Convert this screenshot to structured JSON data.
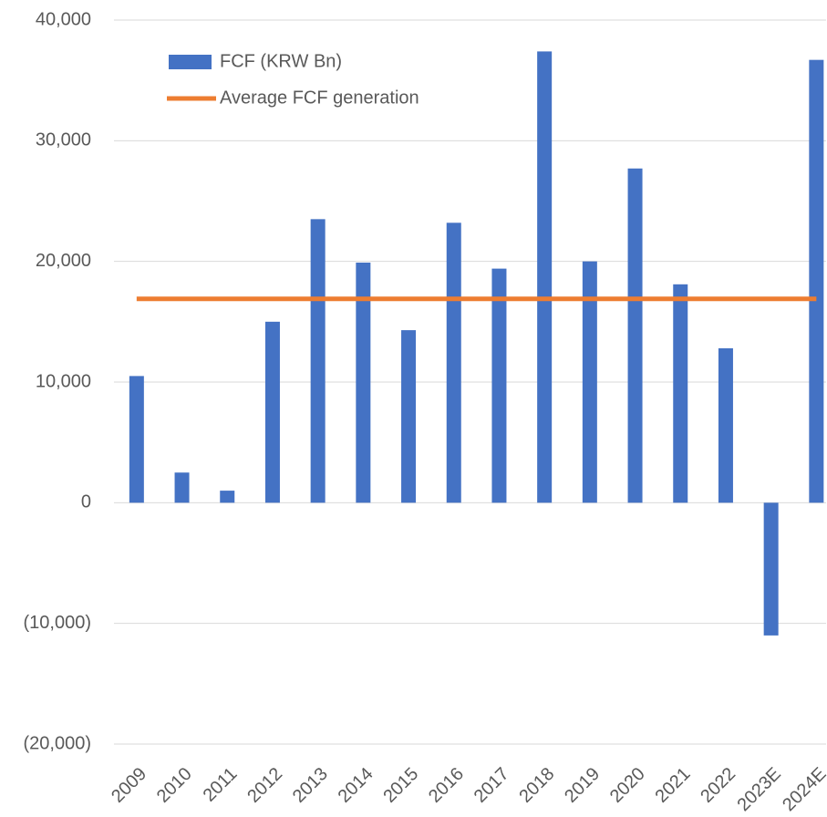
{
  "chart_data": {
    "type": "bar",
    "categories": [
      "2009",
      "2010",
      "2011",
      "2012",
      "2013",
      "2014",
      "2015",
      "2016",
      "2017",
      "2018",
      "2019",
      "2020",
      "2021",
      "2022",
      "2023E",
      "2024E"
    ],
    "series": [
      {
        "name": "FCF (KRW Bn)",
        "type": "bar",
        "color": "#4472c4",
        "values": [
          10500,
          2500,
          1000,
          15000,
          23500,
          19900,
          14300,
          23200,
          19400,
          37400,
          20000,
          27700,
          18100,
          12800,
          -11000,
          36700
        ]
      },
      {
        "name": "Average FCF generation",
        "type": "line",
        "color": "#ed7d31",
        "values": [
          16900,
          16900,
          16900,
          16900,
          16900,
          16900,
          16900,
          16900,
          16900,
          16900,
          16900,
          16900,
          16900,
          16900,
          16900,
          16900
        ]
      }
    ],
    "ylim": [
      -20000,
      40000
    ],
    "yticks": [
      {
        "value": -20000,
        "label": "(20,000)"
      },
      {
        "value": -10000,
        "label": "(10,000)"
      },
      0,
      {
        "value": 10000,
        "label": "10,000"
      },
      {
        "value": 20000,
        "label": "20,000"
      },
      {
        "value": 30000,
        "label": "30,000"
      },
      {
        "value": 40000,
        "label": "40,000"
      }
    ],
    "grid": true
  }
}
